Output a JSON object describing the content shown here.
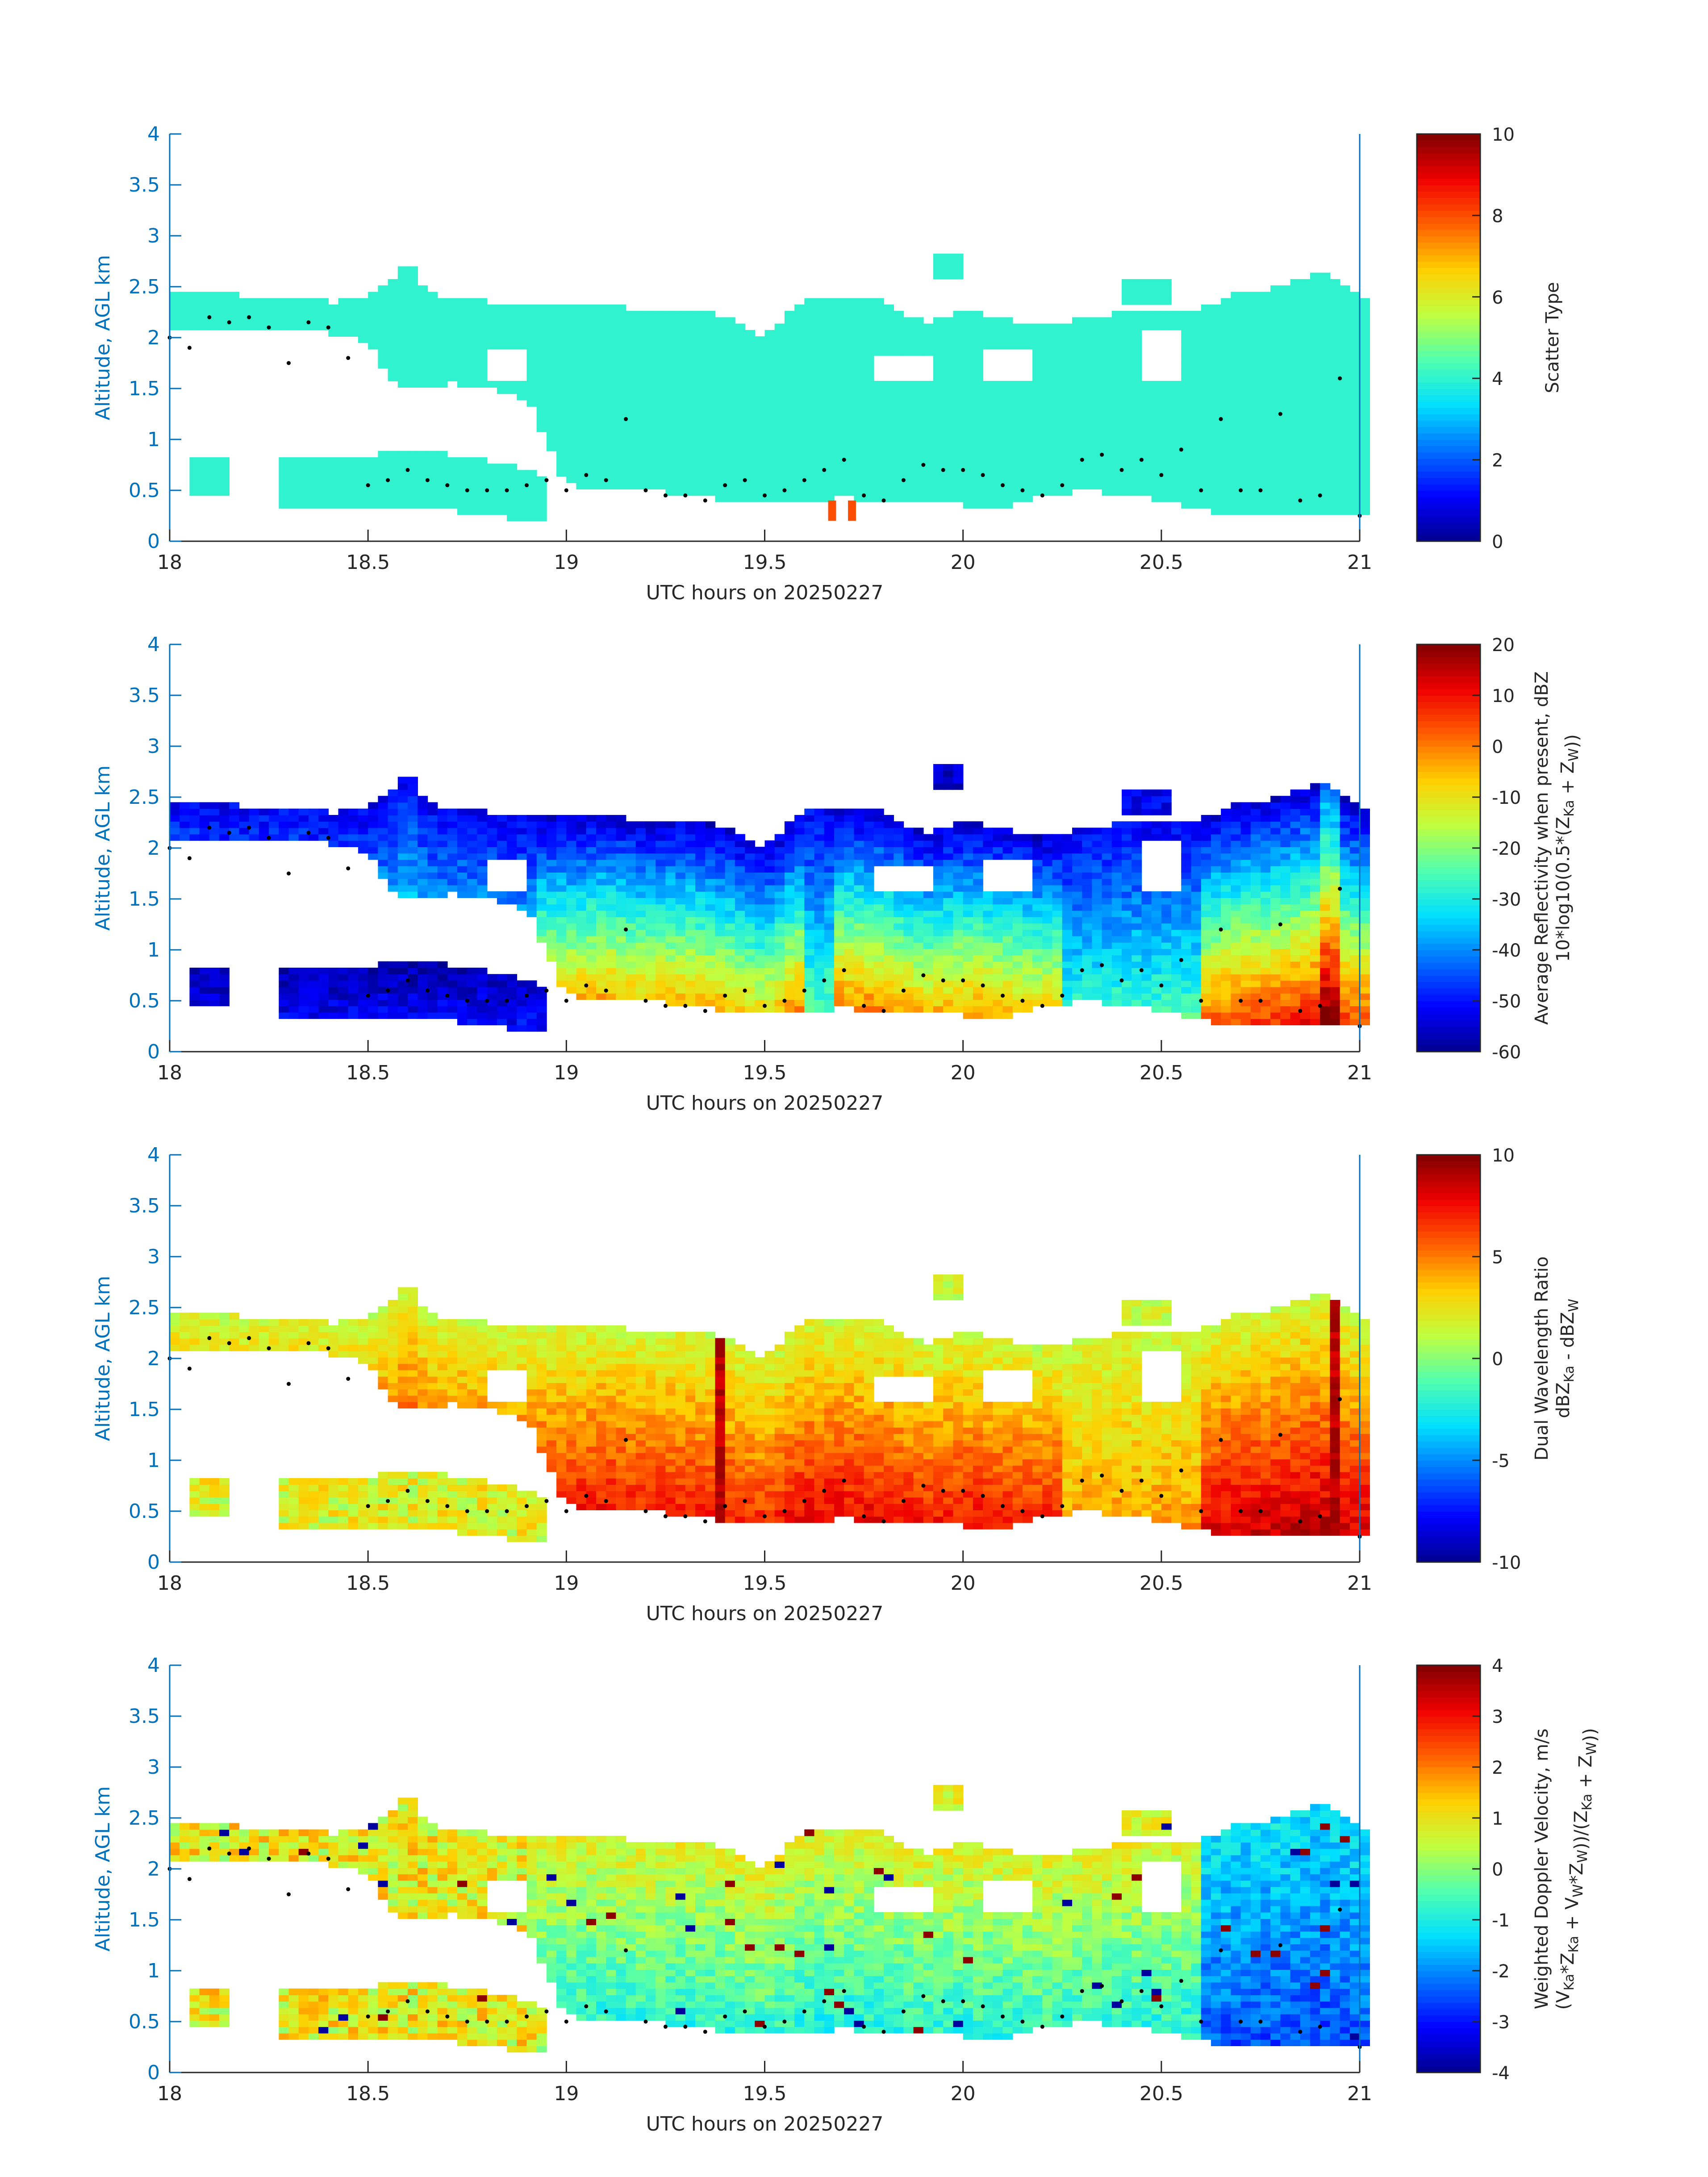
{
  "figure": {
    "xlabel_prefix": "UTC hours on ",
    "date": "20250227",
    "ylabel": "Altitude, AGL km"
  },
  "colormap": [
    "#00008f",
    "#0000ff",
    "#006fff",
    "#00dfff",
    "#50ffaf",
    "#bfff40",
    "#ffcf00",
    "#ff6000",
    "#ef0000",
    "#800000"
  ],
  "chart_data": [
    {
      "type": "heatmap",
      "title": "",
      "xlabel": "UTC hours on 20250227",
      "ylabel": "Altitude, AGL km",
      "xlim": [
        18,
        21
      ],
      "ylim": [
        0,
        4
      ],
      "x_ticks": [
        "18",
        "18.5",
        "19",
        "19.5",
        "20",
        "20.5",
        "21"
      ],
      "y_ticks": [
        "0",
        "0.5",
        "1",
        "1.5",
        "2",
        "2.5",
        "3",
        "3.5",
        "4"
      ],
      "colorbar": {
        "label_lines": [
          "Scatter Type"
        ],
        "clim": [
          0,
          10
        ],
        "ticks": [
          "0",
          "2",
          "4",
          "6",
          "8",
          "10"
        ]
      },
      "field": "scatter_type",
      "dominant_value": 4,
      "other_values": [
        {
          "value": 8,
          "x": [
            19.66,
            19.71
          ],
          "alt_km": [
            0.2,
            0.4
          ]
        }
      ]
    },
    {
      "type": "heatmap",
      "title": "",
      "xlabel": "UTC hours on 20250227",
      "ylabel": "Altitude, AGL km",
      "xlim": [
        18,
        21
      ],
      "ylim": [
        0,
        4
      ],
      "x_ticks": [
        "18",
        "18.5",
        "19",
        "19.5",
        "20",
        "20.5",
        "21"
      ],
      "y_ticks": [
        "0",
        "0.5",
        "1",
        "1.5",
        "2",
        "2.5",
        "3",
        "3.5",
        "4"
      ],
      "colorbar": {
        "label_lines": [
          "Average Reflectivity when present, dBZ",
          "10*log10(0.5*(Z_Ka + Z_W))"
        ],
        "clim": [
          -60,
          20
        ],
        "ticks": [
          "-60",
          "-50",
          "-40",
          "-30",
          "-20",
          "-10",
          "0",
          "10",
          "20"
        ]
      },
      "field": "reflectivity_dBZ",
      "approx_range": [
        -60,
        10
      ]
    },
    {
      "type": "heatmap",
      "title": "",
      "xlabel": "UTC hours on 20250227",
      "ylabel": "Altitude, AGL km",
      "xlim": [
        18,
        21
      ],
      "ylim": [
        0,
        4
      ],
      "x_ticks": [
        "18",
        "18.5",
        "19",
        "19.5",
        "20",
        "20.5",
        "21"
      ],
      "y_ticks": [
        "0",
        "0.5",
        "1",
        "1.5",
        "2",
        "2.5",
        "3",
        "3.5",
        "4"
      ],
      "colorbar": {
        "label_lines": [
          "Dual Wavelength Ratio",
          "dBZ_Ka - dBZ_W"
        ],
        "clim": [
          -10,
          10
        ],
        "ticks": [
          "-10",
          "-5",
          "0",
          "5",
          "10"
        ]
      },
      "field": "dual_wavelength_ratio_dB",
      "approx_range": [
        0,
        10
      ]
    },
    {
      "type": "heatmap",
      "title": "",
      "xlabel": "UTC hours on 20250227",
      "ylabel": "Altitude, AGL km",
      "xlim": [
        18,
        21
      ],
      "ylim": [
        0,
        4
      ],
      "x_ticks": [
        "18",
        "18.5",
        "19",
        "19.5",
        "20",
        "20.5",
        "21"
      ],
      "y_ticks": [
        "0",
        "0.5",
        "1",
        "1.5",
        "2",
        "2.5",
        "3",
        "3.5",
        "4"
      ],
      "colorbar": {
        "label_lines": [
          "Weighted Doppler Velocity, m/s",
          "(V_Ka*Z_Ka + V_W*Z_W))/(Z_Ka + Z_W))"
        ],
        "clim": [
          -4,
          4
        ],
        "ticks": [
          "-4",
          "-3",
          "-2",
          "-1",
          "0",
          "1",
          "2",
          "3",
          "4"
        ]
      },
      "field": "doppler_velocity_ms",
      "approx_range": [
        -4,
        4
      ]
    }
  ],
  "cloud_mask": {
    "x_step_hours": 0.025,
    "alt_step_km": 0.0625,
    "upper_layer": {
      "x": [
        18.0,
        18.1,
        18.2,
        18.3,
        18.4,
        18.5,
        18.55,
        18.6,
        18.65,
        18.7,
        18.8,
        18.9,
        19.0,
        19.1,
        19.2,
        19.3,
        19.4,
        19.5,
        19.6,
        19.7,
        19.8,
        19.9,
        20.0,
        20.1,
        20.2,
        20.3,
        20.4,
        20.5,
        20.6,
        20.7,
        20.8,
        20.9,
        21.0
      ],
      "bottom_km": [
        2.05,
        2.05,
        2.05,
        2.05,
        2.05,
        1.95,
        1.6,
        1.5,
        1.5,
        1.55,
        1.5,
        1.4,
        0.55,
        0.5,
        0.5,
        0.45,
        0.4,
        0.4,
        0.4,
        0.4,
        0.4,
        0.4,
        0.35,
        0.35,
        0.4,
        0.5,
        0.45,
        0.4,
        0.3,
        0.25,
        0.25,
        0.25,
        0.25
      ],
      "top_km": [
        2.45,
        2.45,
        2.4,
        2.4,
        2.35,
        2.4,
        2.55,
        2.75,
        2.45,
        2.4,
        2.35,
        2.3,
        2.3,
        2.35,
        2.25,
        2.3,
        2.2,
        2.0,
        2.4,
        2.4,
        2.35,
        2.15,
        2.25,
        2.2,
        2.1,
        2.2,
        2.25,
        2.25,
        2.3,
        2.45,
        2.5,
        2.65,
        2.4
      ]
    },
    "lower_layer": {
      "x": [
        18.28,
        18.4,
        18.5,
        18.6,
        18.7,
        18.8,
        18.9,
        18.95
      ],
      "bottom_km": [
        0.35,
        0.35,
        0.35,
        0.35,
        0.3,
        0.25,
        0.2,
        0.2
      ],
      "top_km": [
        0.8,
        0.85,
        0.85,
        0.9,
        0.85,
        0.8,
        0.7,
        0.65
      ]
    },
    "small_patch": {
      "x": [
        18.05,
        18.14
      ],
      "bottom_km": 0.45,
      "top_km": 0.8
    },
    "gaps": [
      {
        "x": [
          18.8,
          18.9
        ],
        "alt_km": [
          1.55,
          1.9
        ]
      },
      {
        "x": [
          19.78,
          19.93
        ],
        "alt_km": [
          1.6,
          1.85
        ]
      },
      {
        "x": [
          20.05,
          20.17
        ],
        "alt_km": [
          1.55,
          1.9
        ]
      },
      {
        "x": [
          20.18,
          20.25
        ],
        "alt_km": [
          0.35,
          0.45
        ]
      },
      {
        "x": [
          19.68,
          19.73
        ],
        "alt_km": [
          0.2,
          0.45
        ]
      },
      {
        "x": [
          20.44,
          20.55
        ],
        "alt_km": [
          1.55,
          2.05
        ]
      }
    ],
    "isolated_patches": [
      {
        "x": [
          19.92,
          20.0
        ],
        "alt_km": [
          2.55,
          2.8
        ]
      },
      {
        "x": [
          20.4,
          20.52
        ],
        "alt_km": [
          2.35,
          2.55
        ]
      }
    ]
  },
  "dot_track": {
    "x": [
      18.0,
      18.05,
      18.1,
      18.15,
      18.2,
      18.25,
      18.3,
      18.35,
      18.4,
      18.45,
      18.5,
      18.55,
      18.6,
      18.65,
      18.7,
      18.75,
      18.8,
      18.85,
      18.9,
      18.95,
      19.0,
      19.05,
      19.1,
      19.15,
      19.2,
      19.25,
      19.3,
      19.35,
      19.4,
      19.45,
      19.5,
      19.55,
      19.6,
      19.65,
      19.7,
      19.75,
      19.8,
      19.85,
      19.9,
      19.95,
      20.0,
      20.05,
      20.1,
      20.15,
      20.2,
      20.25,
      20.3,
      20.35,
      20.4,
      20.45,
      20.5,
      20.55,
      20.6,
      20.65,
      20.7,
      20.75,
      20.8,
      20.85,
      20.9,
      20.95,
      21.0
    ],
    "alt_km": [
      2.0,
      1.9,
      2.2,
      2.15,
      2.2,
      2.1,
      1.75,
      2.15,
      2.1,
      1.8,
      0.55,
      0.6,
      0.7,
      0.6,
      0.55,
      0.5,
      0.5,
      0.5,
      0.55,
      0.6,
      0.5,
      0.65,
      0.6,
      1.2,
      0.5,
      0.45,
      0.45,
      0.4,
      0.55,
      0.6,
      0.45,
      0.5,
      0.6,
      0.7,
      0.8,
      0.45,
      0.4,
      0.6,
      0.75,
      0.7,
      0.7,
      0.65,
      0.55,
      0.5,
      0.45,
      0.55,
      0.8,
      0.85,
      0.7,
      0.8,
      0.65,
      0.9,
      0.5,
      1.2,
      0.5,
      0.5,
      1.25,
      0.4,
      0.45,
      1.6,
      0.25
    ]
  }
}
